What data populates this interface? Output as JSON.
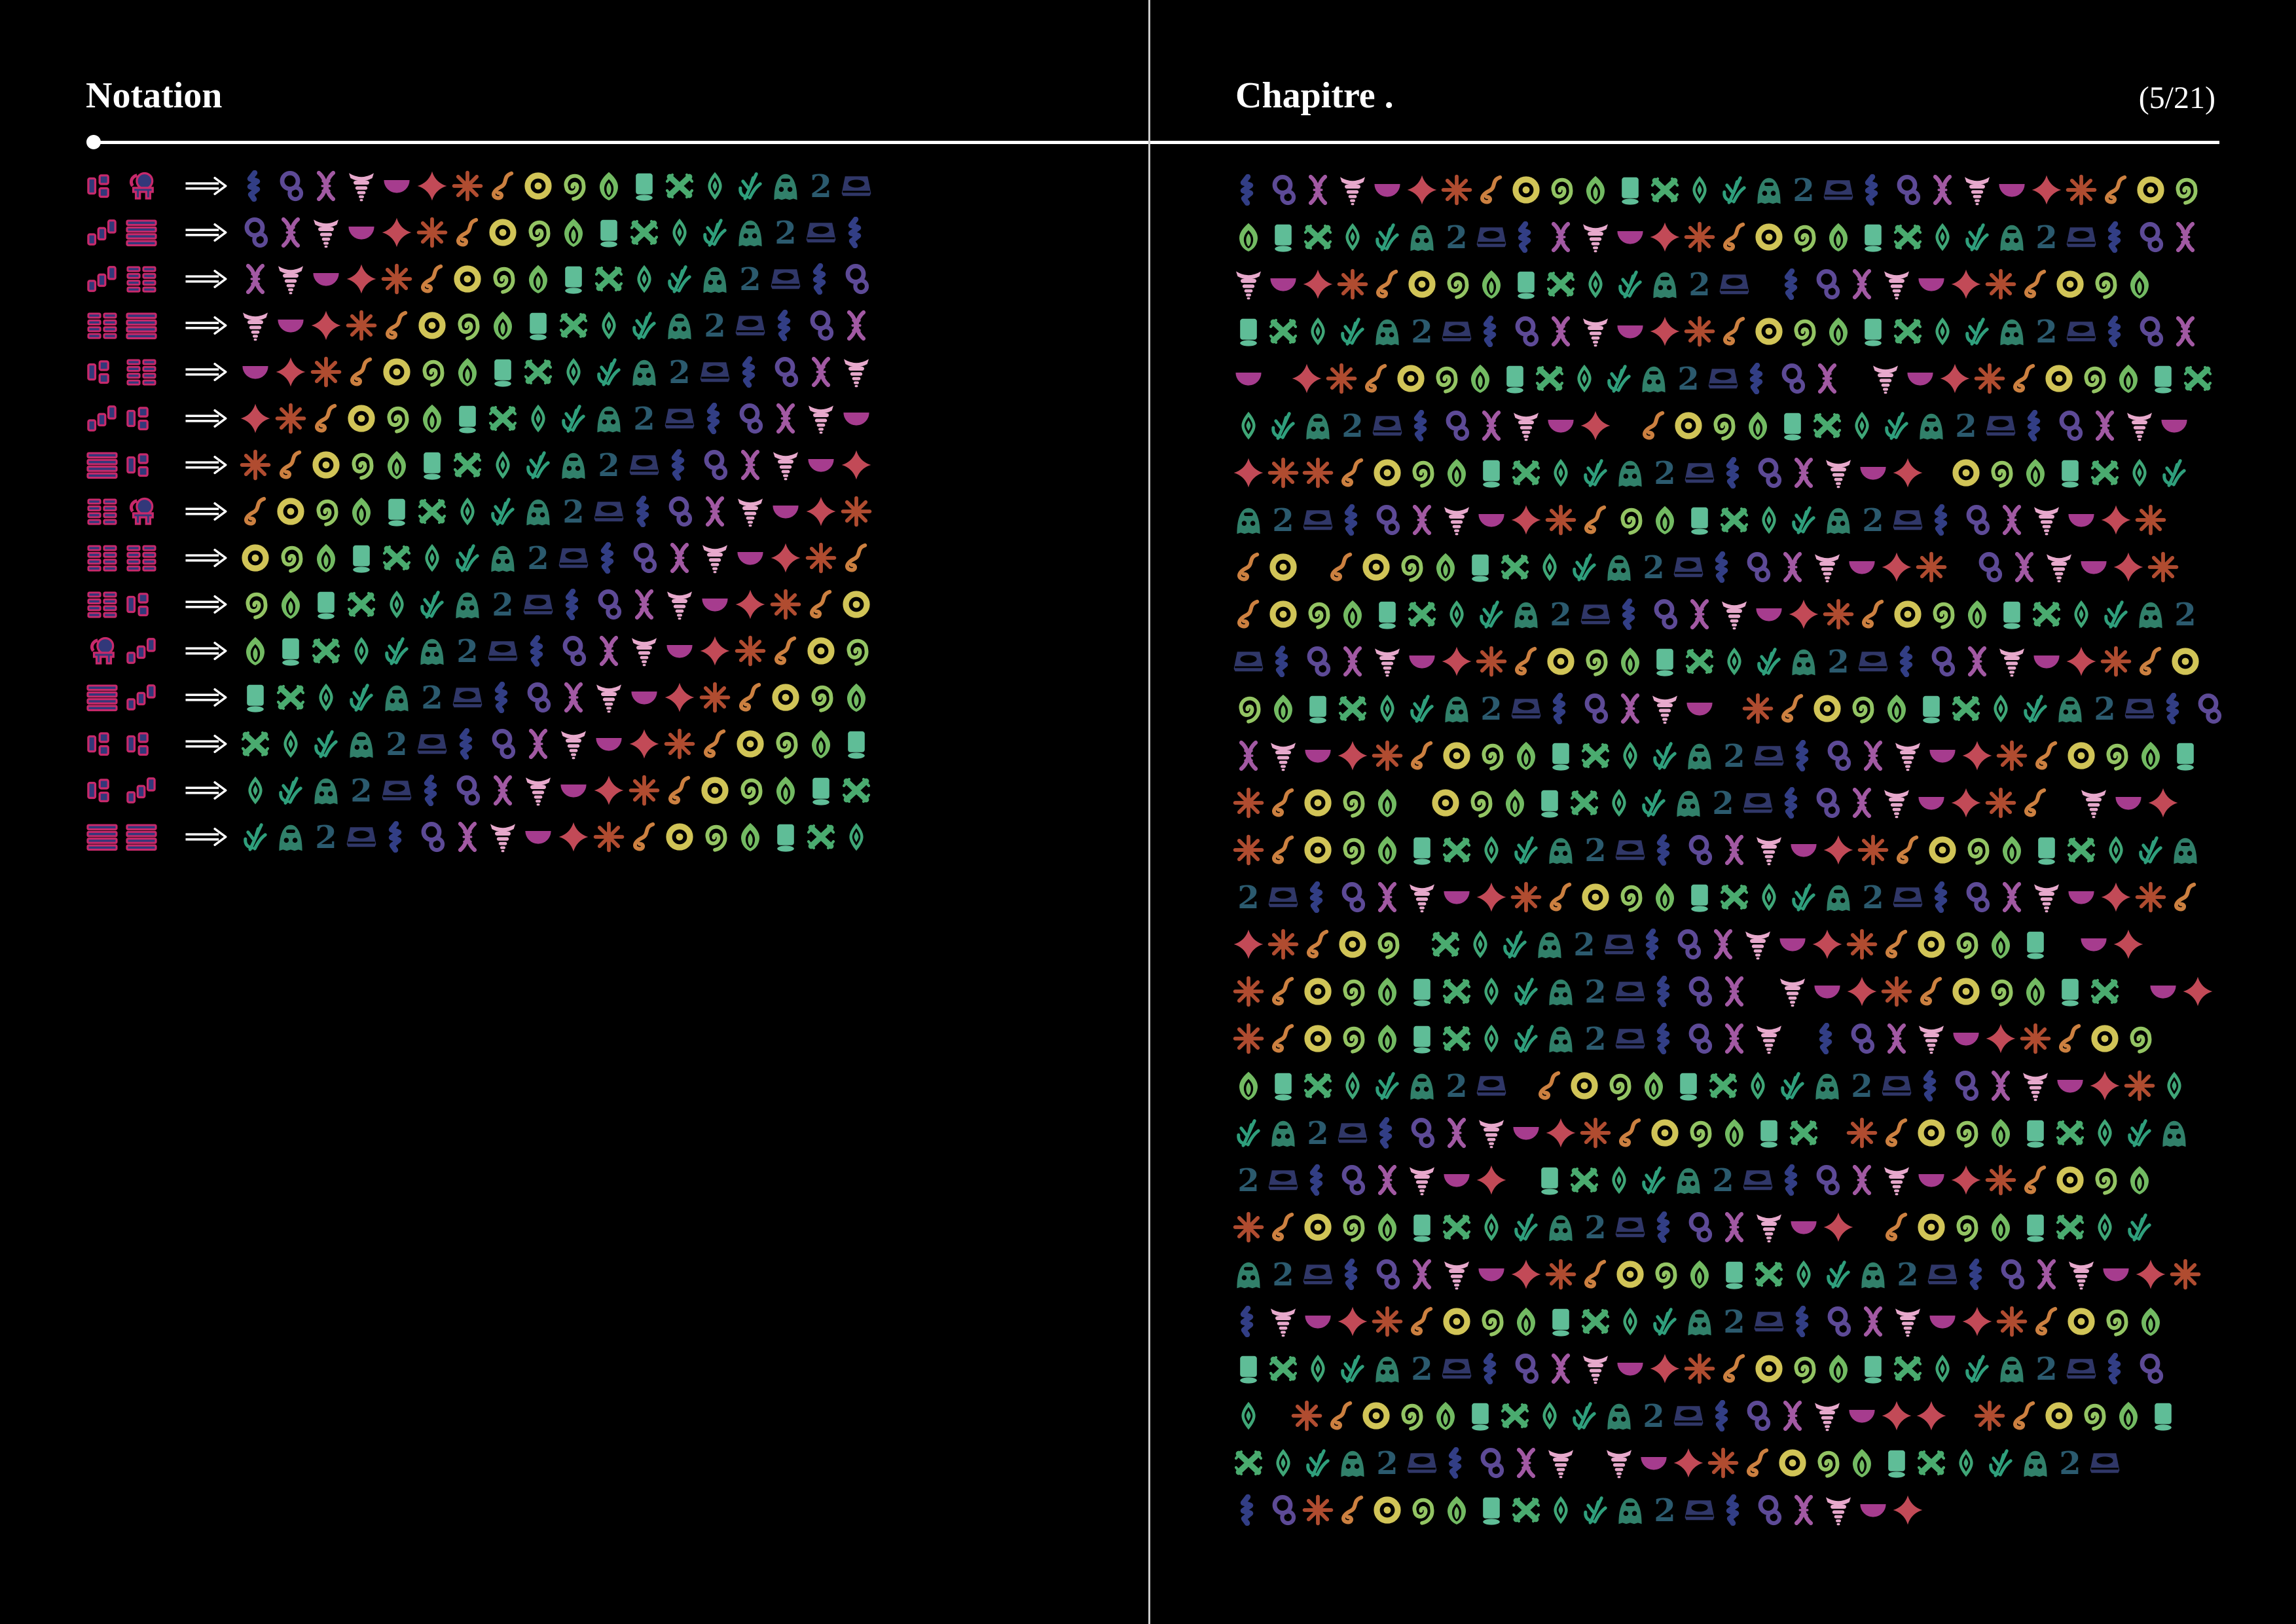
{
  "page": {
    "background": "#000000",
    "divider_color": "#c9c9c9",
    "rule_color": "#ffffff"
  },
  "left": {
    "title": "Notation",
    "rows": [
      {
        "key": [
          "blocks",
          "elephant"
        ],
        "seq": "ABCDEFGHIJKLMNOPQR"
      },
      {
        "key": [
          "steps",
          "bars"
        ],
        "seq": "BCDEFGHIJKLMNOPQRA"
      },
      {
        "key": [
          "steps",
          "grid"
        ],
        "seq": "CDEFGHIJKLMNOPQRAB"
      },
      {
        "key": [
          "grid",
          "bars"
        ],
        "seq": "DEFGHIJKLMNOPQRABC"
      },
      {
        "key": [
          "blocks",
          "grid"
        ],
        "seq": "EFGHIJKLMNOPQRABCD"
      },
      {
        "key": [
          "steps",
          "blocks"
        ],
        "seq": "FGHIJKLMNOPQRABCDE"
      },
      {
        "key": [
          "bars",
          "blocks"
        ],
        "seq": "GHIJKLMNOPQRABCDEF"
      },
      {
        "key": [
          "grid",
          "elephant"
        ],
        "seq": "HIJKLMNOPQRABCDEFG"
      },
      {
        "key": [
          "grid",
          "grid"
        ],
        "seq": "IJKLMNOPQRABCDEFGH"
      },
      {
        "key": [
          "grid",
          "blocks"
        ],
        "seq": "JKLMNOPQRABCDEFGHI"
      },
      {
        "key": [
          "elephant",
          "steps"
        ],
        "seq": "KLMNOPQRABCDEFGHIJ"
      },
      {
        "key": [
          "bars",
          "steps"
        ],
        "seq": "LMNOPQRABCDEFGHIJK"
      },
      {
        "key": [
          "blocks",
          "blocks"
        ],
        "seq": "MNOPQRABCDEFGHIJKL"
      },
      {
        "key": [
          "blocks",
          "steps"
        ],
        "seq": "NOPQRABCDEFGHIJKLM"
      },
      {
        "key": [
          "bars",
          "bars"
        ],
        "seq": "OPQRABCDEFGHIJKLMN"
      }
    ]
  },
  "right": {
    "title": "Chapitre .",
    "page_indicator": "(5/21)",
    "lines": [
      "ABCDEFGHIJKLMNOPQRABCDEFGHIJ",
      "KLMNOPQRACDEFGHIJKLMNOPQRABC",
      "DEFGHIJKLMNOPQR ABCDEFGHIJK",
      "LMNOPQRABCDEFGHIJKLMNOPQRABC",
      "E FGHIJKLMNOPQRABC DEFGHIJKLM",
      "NOPQRABCDEF HIJKLMNOPQRABCDE",
      "FGGHIJKLMNOPQRABCDEF IJKLMNO",
      "PQRABCDEFGHJKLMNOPQRABCDEFG",
      "HI HIJKLMNOPQRABCDEFG BCDEFG",
      "HIJKLMNOPQRABCDEFGHIJKLMNOPQ",
      "RABCDEFGHIJKLMNOPQRABCDEFGHI",
      "JKLMNOPQRABCDE GHIJKLMNOPQRAB",
      "CDEFGHIJKLMNOPQRABCDEFGHIJKL",
      "GHIJK IJKLMNOPQRABCDEFGH DEF",
      "GHIJKLMNOPQRABCDEFGHIJKLMNOP",
      "QRABCDEFGHIJKLMNOPQRABCDEFGH",
      "FGHIJ MNOPQRABCDEFGHIJKL EF",
      "GHIJKLMNOPQRABC DEFGHIJKLM EF",
      "GHIJKLMNOPQRABCD ABCDEFGHIJ",
      "KLMNOPQR HIJKLMNOPQRABCDEFGN",
      "OPQRABCDEFGHIJKLM GHIJKLMNOP",
      "QRABCDEF LMNOPQRABCDEFGHIJK",
      "GHIJKLMNOPQRABCDEF HIJKLMNO",
      "PQRABCDEFGHIJKLMNOPQRABCDEFG",
      "ADEFGHIJKLMNOPQRABCDEFGHIJK",
      "LMNOPQRABCDEFGHIJKLMNOPQRAB",
      "N GHIJKLMNOPQRABCDEFF GHIJKL",
      "MNOPQRABCD DEFGHIJKLMNOPQR",
      "ABGHIJKLMNOPQRABCDEF"
    ]
  },
  "alphabet": {
    "order": "ABCDEFGHIJKLMNOPQR",
    "glyphs": {
      "A": {
        "shape": "zigzag",
        "color": "#323e85"
      },
      "B": {
        "shape": "eight",
        "color": "#5d4a96"
      },
      "C": {
        "shape": "dnax",
        "color": "#a259a3"
      },
      "D": {
        "shape": "cone",
        "color": "#e7a9cc"
      },
      "E": {
        "shape": "half",
        "color": "#a63c8e"
      },
      "F": {
        "shape": "quatre",
        "color": "#c24a57"
      },
      "G": {
        "shape": "aster",
        "color": "#b04c30"
      },
      "H": {
        "shape": "squig",
        "color": "#cc8040"
      },
      "I": {
        "shape": "donut",
        "color": "#d1c457"
      },
      "J": {
        "shape": "spiral",
        "color": "#93c463"
      },
      "K": {
        "shape": "leaf",
        "color": "#72ba62"
      },
      "L": {
        "shape": "cyl",
        "color": "#5fbd97"
      },
      "M": {
        "shape": "weave",
        "color": "#4aab6f"
      },
      "N": {
        "shape": "eye",
        "color": "#3fa677"
      },
      "O": {
        "shape": "plant",
        "color": "#2f9f7c"
      },
      "P": {
        "shape": "face",
        "color": "#31806a"
      },
      "Q": {
        "shape": "two",
        "color": "#2b5a6e"
      },
      "R": {
        "shape": "box",
        "color": "#303768"
      }
    }
  },
  "key_style": {
    "fill": "#32387a",
    "stroke": "#c7296b"
  },
  "icons": {
    "arrow": "double-right-arrow",
    "bullet": "rule-bullet-dot"
  }
}
